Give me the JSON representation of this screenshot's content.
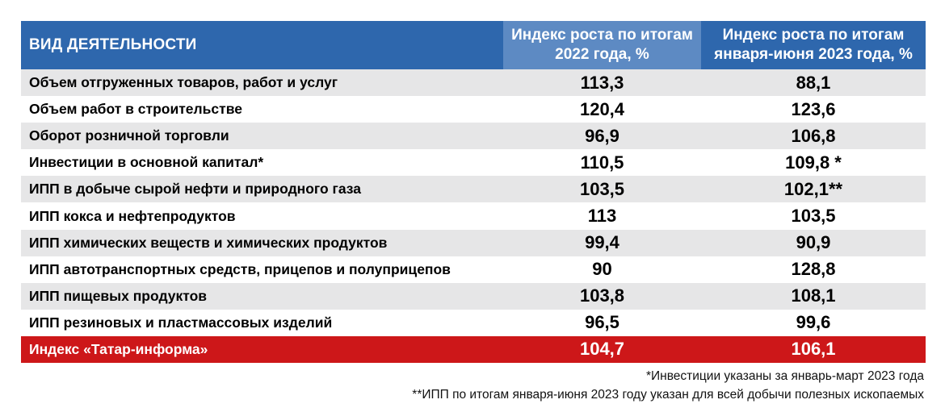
{
  "chart_data": {
    "type": "table",
    "columns": [
      "ВИД ДЕЯТЕЛЬНОСТИ",
      "Индекс роста по итогам\n2022 года, %",
      "Индекс роста по итогам\nянваря-июня 2023 года, %"
    ],
    "rows": [
      {
        "label": "Объем отгруженных товаров, работ и услуг",
        "v2022": "113,3",
        "v2023": "88,1"
      },
      {
        "label": "Объем работ в строительстве",
        "v2022": "120,4",
        "v2023": "123,6"
      },
      {
        "label": "Оборот розничной торговли",
        "v2022": "96,9",
        "v2023": "106,8"
      },
      {
        "label": "Инвестиции в основной капитал*",
        "v2022": "110,5",
        "v2023": "109,8 *"
      },
      {
        "label": "ИПП в добыче сырой нефти и природного газа",
        "v2022": "103,5",
        "v2023": "102,1**"
      },
      {
        "label": "ИПП кокса и нефтепродуктов",
        "v2022": "113",
        "v2023": "103,5"
      },
      {
        "label": "ИПП химических веществ и химических продуктов",
        "v2022": "99,4",
        "v2023": "90,9"
      },
      {
        "label": "ИПП автотранспортных средств, прицепов и полуприцепов",
        "v2022": "90",
        "v2023": "128,8"
      },
      {
        "label": "ИПП пищевых продуктов",
        "v2022": "103,8",
        "v2023": "108,1"
      },
      {
        "label": "ИПП резиновых и пластмассовых изделий",
        "v2022": "96,5",
        "v2023": "99,6"
      }
    ],
    "total": {
      "label": "Индекс «Татар-информа»",
      "v2022": "104,7",
      "v2023": "106,1"
    },
    "footnotes": [
      "*Инвестиции указаны за январь-март 2023 года",
      "**ИПП по итогам января-июня 2023 году указан для всей добычи полезных ископаемых"
    ]
  },
  "colors": {
    "header_dark": "#2e67ad",
    "header_light": "#5d8ac3",
    "row_shade": "#e6e6e7",
    "total_red": "#cd1719"
  }
}
